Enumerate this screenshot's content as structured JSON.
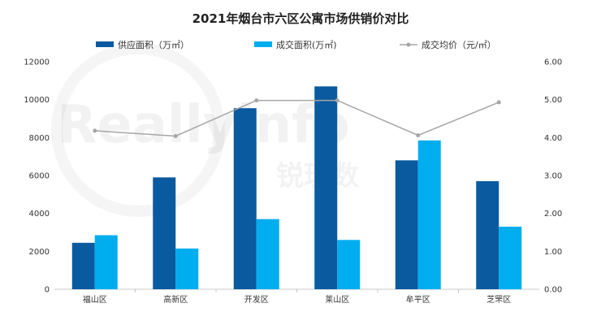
{
  "watermark": {
    "text": "Reallyinfo",
    "sub": "锐理数"
  },
  "chart_data": {
    "type": "bar",
    "title": "2021年烟台市六区公寓市场供销价对比",
    "categories": [
      "福山区",
      "高新区",
      "开发区",
      "莱山区",
      "牟平区",
      "芝罘区"
    ],
    "series": [
      {
        "name": "供应面积（万㎡）",
        "kind": "bar",
        "axis": "left",
        "color": "#0a5aa0",
        "values": [
          2450,
          5900,
          9550,
          10700,
          6800,
          5700
        ]
      },
      {
        "name": "成交面积(万㎡)",
        "kind": "bar",
        "axis": "left",
        "color": "#00adef",
        "values": [
          2850,
          2150,
          3700,
          2600,
          7850,
          3300
        ]
      },
      {
        "name": "成交均价（元/㎡）",
        "kind": "line",
        "axis": "right",
        "color": "#a6a6a6",
        "values": [
          4.18,
          4.04,
          4.98,
          4.98,
          4.06,
          4.93
        ]
      }
    ],
    "left_axis": {
      "min": 0,
      "max": 12000,
      "step": 2000,
      "ticks": [
        "0",
        "2000",
        "4000",
        "6000",
        "8000",
        "10000",
        "12000"
      ]
    },
    "right_axis": {
      "min": 0,
      "max": 6,
      "step": 1,
      "ticks": [
        "0.00",
        "1.00",
        "2.00",
        "3.00",
        "4.00",
        "5.00",
        "6.00"
      ]
    },
    "grid": false,
    "legend_position": "top"
  }
}
